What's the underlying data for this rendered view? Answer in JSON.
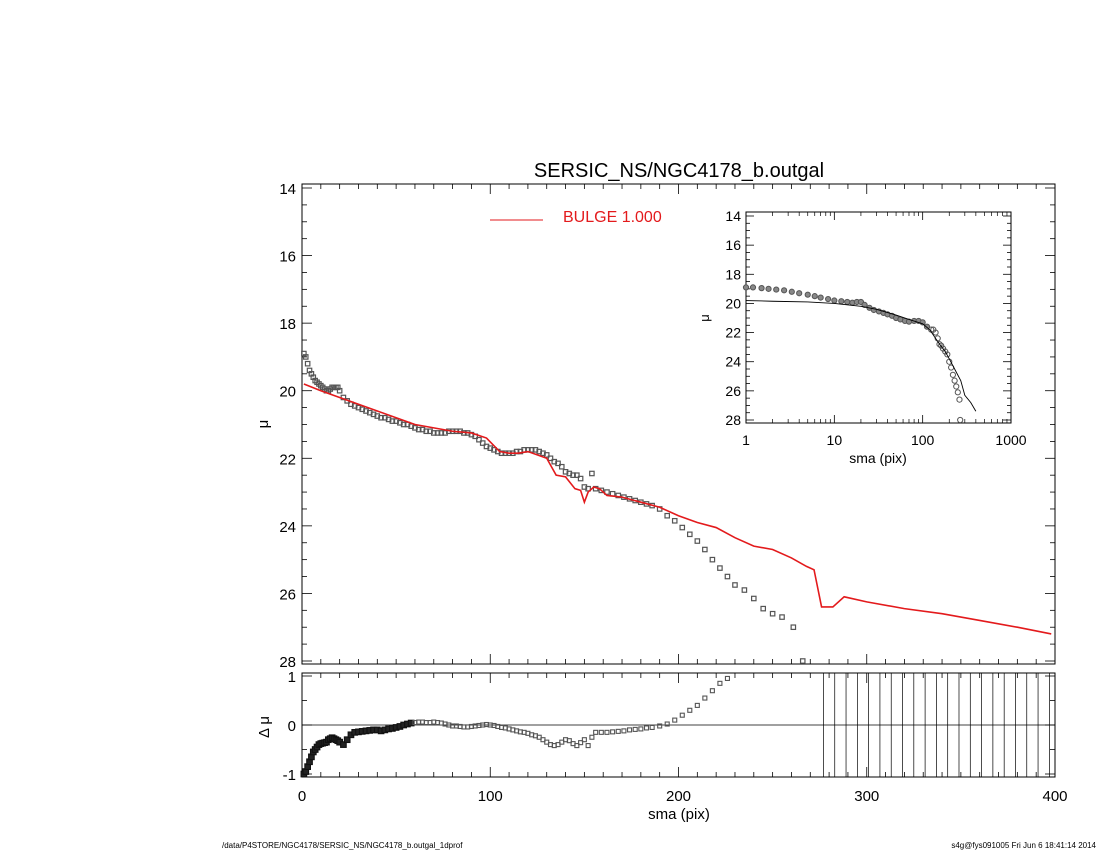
{
  "footer": {
    "left": "/data/P4STORE/NGC4178/SERSIC_NS/NGC4178_b.outgal_1dprof",
    "right": "s4g@fys091005  Fri Jun  6 18:41:14 2014"
  },
  "colors": {
    "model": "#e31a1c",
    "data": "#555555",
    "axes": "#000000"
  },
  "chart_data": [
    {
      "id": "main",
      "type": "scatter",
      "title": "SERSIC_NS/NGC4178_b.outgal",
      "ylabel": "μ",
      "xlabel": "",
      "xlim": [
        0,
        400
      ],
      "ylim": [
        28,
        14
      ],
      "y_inverted": true,
      "xticks": [
        "0",
        "100",
        "200",
        "300",
        "400"
      ],
      "yticks": [
        "14",
        "16",
        "18",
        "20",
        "22",
        "24",
        "26",
        "28"
      ],
      "legend": {
        "label": "BULGE  1.000",
        "placement": "top-center"
      },
      "series": [
        {
          "type": "scatter",
          "marker": "square",
          "x": [
            1,
            2,
            3,
            4,
            5,
            6,
            7,
            8,
            9,
            10,
            11,
            12,
            13,
            14,
            15,
            16,
            17,
            18,
            19,
            20,
            22,
            24,
            26,
            28,
            30,
            32,
            34,
            36,
            38,
            40,
            42,
            44,
            46,
            48,
            50,
            52,
            54,
            56,
            58,
            60,
            62,
            64,
            66,
            68,
            70,
            72,
            74,
            76,
            78,
            80,
            82,
            84,
            86,
            88,
            90,
            92,
            94,
            96,
            98,
            100,
            102,
            104,
            106,
            108,
            110,
            112,
            114,
            116,
            118,
            120,
            122,
            124,
            126,
            128,
            130,
            132,
            134,
            136,
            138,
            140,
            142,
            144,
            146,
            148,
            150,
            152,
            154,
            156,
            159,
            162,
            165,
            168,
            171,
            174,
            177,
            180,
            183,
            186,
            190,
            194,
            198,
            202,
            206,
            210,
            214,
            218,
            222,
            226,
            230,
            235,
            240,
            245,
            250,
            255,
            261,
            266
          ],
          "y": [
            18.9,
            19.0,
            19.2,
            19.4,
            19.5,
            19.6,
            19.7,
            19.75,
            19.8,
            19.85,
            19.9,
            19.95,
            20.0,
            20.0,
            19.95,
            19.9,
            19.9,
            19.9,
            19.9,
            20.0,
            20.2,
            20.3,
            20.4,
            20.45,
            20.5,
            20.55,
            20.6,
            20.65,
            20.7,
            20.75,
            20.8,
            20.8,
            20.85,
            20.9,
            20.9,
            20.95,
            21.0,
            21.0,
            21.05,
            21.1,
            21.15,
            21.15,
            21.2,
            21.2,
            21.25,
            21.25,
            21.25,
            21.25,
            21.2,
            21.2,
            21.2,
            21.2,
            21.25,
            21.25,
            21.3,
            21.35,
            21.45,
            21.55,
            21.65,
            21.7,
            21.75,
            21.8,
            21.85,
            21.85,
            21.85,
            21.85,
            21.8,
            21.8,
            21.75,
            21.75,
            21.75,
            21.75,
            21.8,
            21.85,
            21.9,
            22.0,
            22.1,
            22.15,
            22.25,
            22.4,
            22.45,
            22.5,
            22.5,
            22.6,
            22.85,
            22.9,
            22.45,
            22.9,
            22.95,
            23.0,
            23.05,
            23.1,
            23.15,
            23.2,
            23.25,
            23.3,
            23.35,
            23.4,
            23.5,
            23.7,
            23.85,
            24.05,
            24.25,
            24.45,
            24.7,
            25.0,
            25.25,
            25.5,
            25.75,
            25.9,
            26.15,
            26.45,
            26.6,
            26.7,
            27.0,
            28.0
          ]
        },
        {
          "type": "line",
          "name": "BULGE  1.000",
          "x": [
            1,
            10,
            20,
            30,
            40,
            50,
            60,
            70,
            80,
            90,
            98,
            105,
            110,
            115,
            120,
            125,
            130,
            135,
            140,
            145,
            148,
            150,
            152,
            155,
            158,
            162,
            170,
            180,
            190,
            200,
            210,
            220,
            230,
            240,
            250,
            260,
            268,
            272,
            276,
            282,
            288,
            300,
            320,
            340,
            360,
            380,
            398
          ],
          "y": [
            19.8,
            20.0,
            20.2,
            20.4,
            20.6,
            20.8,
            21.0,
            21.1,
            21.2,
            21.25,
            21.4,
            21.8,
            21.85,
            21.85,
            21.8,
            21.9,
            22.0,
            22.5,
            22.55,
            22.9,
            22.95,
            23.3,
            23.0,
            22.85,
            22.9,
            23.1,
            23.15,
            23.3,
            23.45,
            23.7,
            23.9,
            24.05,
            24.35,
            24.6,
            24.7,
            24.95,
            25.2,
            25.3,
            26.4,
            26.4,
            26.1,
            26.25,
            26.45,
            26.6,
            26.8,
            27.0,
            27.2
          ]
        }
      ]
    },
    {
      "id": "residual",
      "type": "scatter",
      "ylabel": "Δ μ",
      "xlabel": "sma (pix)",
      "xlim": [
        0,
        400
      ],
      "ylim": [
        -1,
        1
      ],
      "xticks": [
        "0",
        "100",
        "200",
        "300",
        "400"
      ],
      "yticks": [
        "-1",
        "0",
        "1"
      ],
      "zero_line": true,
      "vertical_lines_x": [
        277,
        283,
        289,
        295,
        301,
        307,
        313,
        319,
        325,
        331,
        337,
        343,
        349,
        355,
        361,
        367,
        373,
        379,
        385,
        391,
        397
      ],
      "series": [
        {
          "type": "scatter",
          "marker": "square",
          "x": [
            1,
            2,
            3,
            4,
            5,
            6,
            7,
            8,
            9,
            10,
            11,
            12,
            13,
            14,
            15,
            16,
            17,
            18,
            19,
            20,
            22,
            24,
            26,
            28,
            30,
            32,
            34,
            36,
            38,
            40,
            42,
            44,
            46,
            48,
            50,
            52,
            54,
            56,
            58,
            60,
            62,
            64,
            66,
            68,
            70,
            72,
            74,
            76,
            78,
            80,
            82,
            84,
            86,
            88,
            90,
            92,
            94,
            96,
            98,
            100,
            102,
            104,
            106,
            108,
            110,
            112,
            114,
            116,
            118,
            120,
            122,
            124,
            126,
            128,
            130,
            132,
            134,
            136,
            138,
            140,
            142,
            144,
            146,
            148,
            150,
            152,
            154,
            156,
            159,
            162,
            165,
            168,
            171,
            174,
            177,
            180,
            183,
            186,
            190,
            194,
            198,
            202,
            206,
            210,
            214,
            218,
            222,
            226
          ],
          "y": [
            -1.0,
            -0.95,
            -0.85,
            -0.75,
            -0.65,
            -0.55,
            -0.5,
            -0.45,
            -0.4,
            -0.38,
            -0.37,
            -0.36,
            -0.35,
            -0.3,
            -0.28,
            -0.26,
            -0.28,
            -0.3,
            -0.32,
            -0.35,
            -0.4,
            -0.3,
            -0.2,
            -0.15,
            -0.14,
            -0.13,
            -0.12,
            -0.11,
            -0.1,
            -0.1,
            -0.12,
            -0.1,
            -0.08,
            -0.07,
            -0.05,
            -0.03,
            0.0,
            0.02,
            0.04,
            0.05,
            0.06,
            0.06,
            0.05,
            0.05,
            0.06,
            0.05,
            0.04,
            0.02,
            0.0,
            -0.02,
            -0.02,
            -0.03,
            -0.04,
            -0.04,
            -0.03,
            -0.02,
            -0.01,
            0.0,
            0.01,
            0.0,
            -0.01,
            -0.03,
            -0.05,
            -0.06,
            -0.08,
            -0.1,
            -0.12,
            -0.14,
            -0.15,
            -0.17,
            -0.2,
            -0.22,
            -0.25,
            -0.3,
            -0.35,
            -0.4,
            -0.42,
            -0.4,
            -0.35,
            -0.3,
            -0.32,
            -0.38,
            -0.42,
            -0.36,
            -0.3,
            -0.42,
            -0.25,
            -0.15,
            -0.15,
            -0.15,
            -0.14,
            -0.13,
            -0.12,
            -0.1,
            -0.09,
            -0.08,
            -0.06,
            -0.05,
            -0.02,
            0.02,
            0.1,
            0.2,
            0.3,
            0.4,
            0.55,
            0.7,
            0.85,
            0.95
          ]
        }
      ]
    },
    {
      "id": "inset",
      "type": "scatter",
      "xscale": "log",
      "xlabel": "sma (pix)",
      "ylabel": "μ",
      "xlim": [
        1,
        1000
      ],
      "ylim": [
        28,
        14
      ],
      "y_inverted": true,
      "xticks": [
        "1",
        "10",
        "100",
        "1000"
      ],
      "yticks": [
        "14",
        "16",
        "18",
        "20",
        "22",
        "24",
        "26",
        "28"
      ],
      "series": [
        {
          "type": "scatter",
          "marker": "circle",
          "x": [
            1.0,
            1.2,
            1.5,
            1.8,
            2.2,
            2.7,
            3.3,
            4.0,
            5.0,
            6.0,
            7.0,
            8.5,
            10,
            12,
            14,
            16,
            18,
            20,
            22,
            25,
            28,
            32,
            36,
            40,
            45,
            50,
            56,
            63,
            70,
            80,
            90,
            100,
            112,
            125,
            132,
            140,
            148,
            155,
            162,
            170,
            180,
            190,
            200,
            210,
            220,
            230,
            240,
            250,
            261,
            266
          ],
          "y": [
            18.9,
            18.9,
            18.95,
            19.0,
            19.05,
            19.1,
            19.2,
            19.3,
            19.4,
            19.5,
            19.6,
            19.7,
            19.8,
            19.85,
            19.9,
            19.95,
            19.9,
            19.9,
            20.1,
            20.3,
            20.45,
            20.55,
            20.65,
            20.75,
            20.85,
            21.0,
            21.1,
            21.2,
            21.25,
            21.2,
            21.2,
            21.3,
            21.6,
            21.8,
            21.8,
            22.0,
            22.4,
            22.8,
            22.9,
            23.1,
            23.3,
            23.5,
            24.0,
            24.4,
            24.9,
            25.3,
            25.7,
            26.1,
            26.6,
            28.0
          ]
        },
        {
          "type": "line",
          "x": [
            1,
            2,
            5,
            10,
            20,
            30,
            50,
            70,
            100,
            120,
            140,
            160,
            180,
            200,
            230,
            270,
            300,
            350,
            400
          ],
          "y": [
            19.8,
            19.85,
            19.9,
            20.0,
            20.2,
            20.4,
            20.8,
            21.1,
            21.4,
            21.8,
            22.4,
            22.9,
            23.3,
            23.8,
            24.5,
            25.3,
            26.3,
            26.8,
            27.4
          ]
        }
      ]
    }
  ]
}
